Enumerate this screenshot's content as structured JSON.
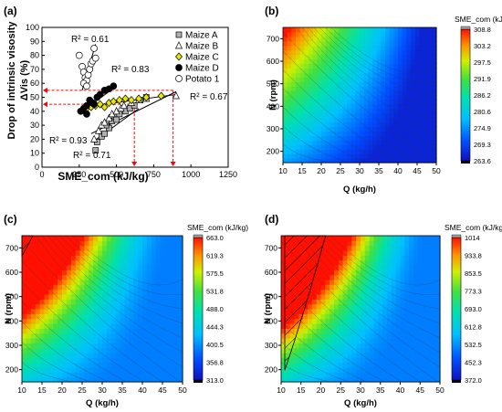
{
  "chart_data": [
    {
      "panel": "(a)",
      "type": "scatter",
      "xlabel": "SME_com (kJ/kg)",
      "ylabel_line1": "Drop of intrinsic visosity",
      "ylabel_line2": "ΔVis (%)",
      "xlim": [
        0,
        1250
      ],
      "ylim": [
        0,
        100
      ],
      "xticks": [
        0,
        250,
        500,
        750,
        1000,
        1250
      ],
      "yticks": [
        0,
        10,
        20,
        30,
        40,
        50,
        60,
        70,
        80,
        90,
        100
      ],
      "legend_position": "top-right",
      "series": [
        {
          "name": "Maize A",
          "marker": "square",
          "color": "#b0b0b0",
          "points": [
            [
              360,
              12
            ],
            [
              370,
              18
            ],
            [
              400,
              22
            ],
            [
              420,
              24
            ],
            [
              450,
              28
            ],
            [
              470,
              33
            ],
            [
              490,
              36
            ],
            [
              520,
              38
            ],
            [
              560,
              40
            ],
            [
              590,
              42
            ],
            [
              620,
              44
            ],
            [
              660,
              48
            ],
            [
              700,
              50
            ],
            [
              430,
              30
            ],
            [
              500,
              34
            ]
          ]
        },
        {
          "name": "Maize B",
          "marker": "triangle",
          "color": "#ffffff",
          "points": [
            [
              350,
              20
            ],
            [
              380,
              26
            ],
            [
              400,
              30
            ],
            [
              420,
              32
            ],
            [
              450,
              35
            ],
            [
              470,
              38
            ],
            [
              500,
              40
            ],
            [
              530,
              42
            ],
            [
              550,
              44
            ],
            [
              600,
              46
            ],
            [
              650,
              48
            ],
            [
              700,
              49
            ],
            [
              900,
              51
            ]
          ]
        },
        {
          "name": "Maize C",
          "marker": "diamond",
          "color": "#e6e600",
          "points": [
            [
              300,
              42
            ],
            [
              330,
              43
            ],
            [
              360,
              44
            ],
            [
              390,
              45
            ],
            [
              420,
              43
            ],
            [
              450,
              46
            ],
            [
              480,
              47
            ],
            [
              520,
              48
            ],
            [
              560,
              49
            ],
            [
              600,
              48
            ],
            [
              650,
              49
            ],
            [
              700,
              50
            ],
            [
              800,
              51
            ]
          ]
        },
        {
          "name": "Maize D",
          "marker": "circle",
          "color": "#000000",
          "points": [
            [
              260,
              40
            ],
            [
              280,
              42
            ],
            [
              300,
              44
            ],
            [
              320,
              48
            ],
            [
              340,
              46
            ],
            [
              370,
              50
            ],
            [
              390,
              52
            ],
            [
              420,
              55
            ],
            [
              450,
              56
            ],
            [
              480,
              58
            ],
            [
              300,
              38
            ],
            [
              350,
              45
            ]
          ]
        },
        {
          "name": "Potato 1",
          "marker": "circle",
          "color": "#ffffff",
          "points": [
            [
              250,
              80
            ],
            [
              270,
              72
            ],
            [
              280,
              68
            ],
            [
              290,
              64
            ],
            [
              300,
              62
            ],
            [
              310,
              66
            ],
            [
              320,
              70
            ],
            [
              330,
              74
            ],
            [
              340,
              76
            ],
            [
              350,
              85
            ],
            [
              360,
              78
            ],
            [
              280,
              60
            ],
            [
              300,
              58
            ]
          ]
        }
      ],
      "annotations": [
        {
          "text": "R² = 0.61"
        },
        {
          "text": "R² = 0.83"
        },
        {
          "text": "R² = 0.67"
        },
        {
          "text": "R² = 0.93"
        },
        {
          "text": "R² = 0.71"
        }
      ],
      "trend_lines": [
        {
          "from": [
            270,
            55
          ],
          "to": [
            360,
            88
          ]
        },
        {
          "from": [
            270,
            40
          ],
          "to": [
            500,
            58
          ]
        },
        {
          "from": [
            280,
            43
          ],
          "to": [
            900,
            52
          ]
        },
        {
          "from": [
            340,
            18
          ],
          "to": [
            650,
            42
          ]
        },
        {
          "from": [
            330,
            24
          ],
          "to": [
            900,
            54
          ]
        }
      ],
      "reference_lines": [
        {
          "y": 55,
          "x": 880
        },
        {
          "y": 45,
          "x": 620
        }
      ]
    },
    {
      "panel": "(b)",
      "type": "heatmap",
      "title": "SME_com (kJ/kg)",
      "xlabel": "Q (kg/h)",
      "ylabel": "N (rpm)",
      "xlim": [
        10,
        50
      ],
      "ylim": [
        150,
        750
      ],
      "xticks": [
        10,
        15,
        20,
        25,
        30,
        35,
        40,
        45,
        50
      ],
      "yticks": [
        200,
        300,
        400,
        500,
        600,
        700
      ],
      "colorbar": [
        "308.8",
        "303.2",
        "297.5",
        "291.9",
        "286.2",
        "280.6",
        "274.9",
        "269.3",
        "263.6"
      ],
      "hatched_region": false
    },
    {
      "panel": "(c)",
      "type": "heatmap",
      "title": "SME_com (kJ/kg)",
      "xlabel": "Q (kg/h)",
      "ylabel": "N (rpm)",
      "xlim": [
        10,
        50
      ],
      "ylim": [
        150,
        750
      ],
      "xticks": [
        10,
        15,
        20,
        25,
        30,
        35,
        40,
        45,
        50
      ],
      "yticks": [
        200,
        300,
        400,
        500,
        600,
        700
      ],
      "colorbar": [
        "663.0",
        "619.3",
        "575.5",
        "531.8",
        "488.0",
        "444.3",
        "400.5",
        "356.8",
        "313.0"
      ],
      "hatched_region": true
    },
    {
      "panel": "(d)",
      "type": "heatmap",
      "title": "SME_com (kJ/kg)",
      "xlabel": "Q (kg/h)",
      "ylabel": "N (rpm)",
      "xlim": [
        10,
        50
      ],
      "ylim": [
        150,
        750
      ],
      "xticks": [
        10,
        15,
        20,
        25,
        30,
        35,
        40,
        45,
        50
      ],
      "yticks": [
        200,
        300,
        400,
        500,
        600,
        700
      ],
      "colorbar": [
        "1014",
        "933.8",
        "853.5",
        "773.3",
        "693.0",
        "612.8",
        "532.5",
        "452.3",
        "372.0"
      ],
      "hatched_region": true
    }
  ]
}
